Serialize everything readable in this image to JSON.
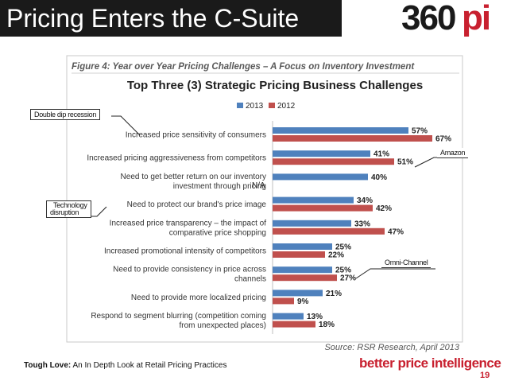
{
  "slide": {
    "title": "Pricing Enters the C-Suite",
    "logo_number": "360",
    "logo_suffix": "pi",
    "footer_bold": "Tough Love:",
    "footer_rest": " An In Depth Look at Retail Pricing Practices",
    "brand_tagline": "better price intelligence",
    "page_number": "19"
  },
  "callouts": {
    "double_dip": "Double dip recession",
    "technology": "Technology",
    "disruption": "disruption",
    "amazon": "Amazon",
    "omni_channel": "Omni-Channel"
  },
  "chart_data": {
    "type": "bar",
    "orientation": "horizontal",
    "figure_caption": "Figure 4: Year over Year Pricing Challenges – A Focus on Inventory Investment",
    "title": "Top Three (3) Strategic Pricing Business Challenges",
    "source": "Source: RSR Research, April 2013",
    "categories": [
      [
        "Increased price sensitivity of consumers"
      ],
      [
        "Increased pricing aggressiveness from competitors"
      ],
      [
        "Need to get better return on our inventory",
        "investment through pricing"
      ],
      [
        "Need to protect our brand's price image"
      ],
      [
        "Increased price transparency – the impact of",
        "comparative price shopping"
      ],
      [
        "Increased promotional intensity of competitors"
      ],
      [
        "Need to provide consistency in price across",
        "channels"
      ],
      [
        "Need to provide more localized pricing"
      ],
      [
        "Respond to segment blurring (competition coming",
        "from unexpected places)"
      ]
    ],
    "series": [
      {
        "name": "2013",
        "color": "#4f81bd",
        "values": [
          57,
          41,
          40,
          34,
          33,
          25,
          25,
          21,
          13
        ],
        "labels": [
          "57%",
          "41%",
          "40%",
          "34%",
          "33%",
          "25%",
          "25%",
          "21%",
          "13%"
        ]
      },
      {
        "name": "2012",
        "color": "#c0504d",
        "values": [
          67,
          51,
          null,
          42,
          47,
          22,
          27,
          9,
          18
        ],
        "labels": [
          "67%",
          "51%",
          "N/A",
          "42%",
          "47%",
          "22%",
          "27%",
          "9%",
          "18%"
        ]
      }
    ],
    "legend_position": "top"
  }
}
